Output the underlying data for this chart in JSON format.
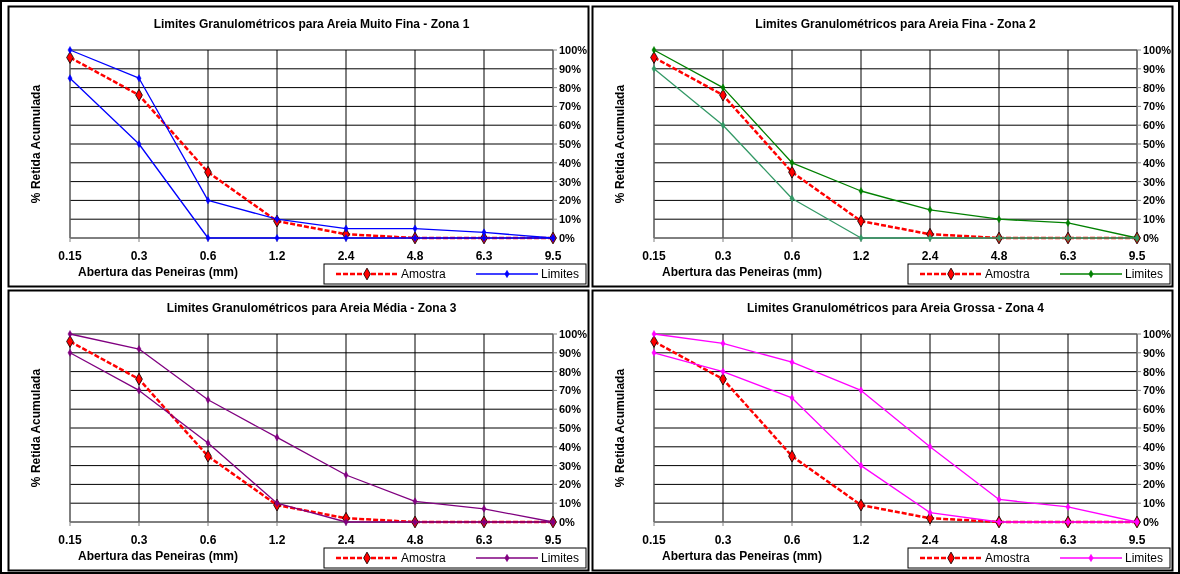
{
  "chart_data": [
    {
      "type": "line",
      "title": "Limites Granulométricos para Areia Muito Fina - Zona 1",
      "xlabel": "Abertura das Peneiras (mm)",
      "ylabel": "% Retida Acumulada",
      "categories": [
        "0.15",
        "0.3",
        "0.6",
        "1.2",
        "2.4",
        "4.8",
        "6.3",
        "9.5"
      ],
      "ylim": [
        0,
        100
      ],
      "yticks": [
        {
          "value": 0,
          "label": "0%"
        },
        {
          "value": 10,
          "label": "10%"
        },
        {
          "value": 20,
          "label": "20%"
        },
        {
          "value": 30,
          "label": "30%"
        },
        {
          "value": 40,
          "label": "40%"
        },
        {
          "value": 50,
          "label": "50%"
        },
        {
          "value": 60,
          "label": "60%"
        },
        {
          "value": 70,
          "label": "70%"
        },
        {
          "value": 80,
          "label": "80%"
        },
        {
          "value": 90,
          "label": "90%"
        },
        {
          "value": 100,
          "label": "100%"
        }
      ],
      "grid": true,
      "legend": "bottom right",
      "marker": "diamond",
      "series": [
        {
          "name": "Amostra",
          "color": "#ff0000",
          "line_style": "dashed",
          "values": [
            96,
            76,
            35,
            9,
            2,
            0,
            0,
            0
          ]
        },
        {
          "name": "Limites",
          "color": "#0000ff",
          "values": [
            100,
            85,
            20,
            10,
            5,
            5,
            3,
            0
          ]
        },
        {
          "color": "#0000ff",
          "values": [
            85,
            50,
            0,
            0,
            0,
            0,
            0,
            0
          ]
        }
      ]
    },
    {
      "type": "line",
      "title": "Limites Granulométricos para Areia Fina - Zona 2",
      "xlabel": "Abertura das Peneiras (mm)",
      "ylabel": "% Retida Acumulada",
      "categories": [
        "0.15",
        "0.3",
        "0.6",
        "1.2",
        "2.4",
        "4.8",
        "6.3",
        "9.5"
      ],
      "ylim": [
        0,
        100
      ],
      "yticks": [
        {
          "value": 0,
          "label": "0%"
        },
        {
          "value": 10,
          "label": "10%"
        },
        {
          "value": 20,
          "label": "20%"
        },
        {
          "value": 30,
          "label": "30%"
        },
        {
          "value": 40,
          "label": "40%"
        },
        {
          "value": 50,
          "label": "50%"
        },
        {
          "value": 60,
          "label": "60%"
        },
        {
          "value": 70,
          "label": "70%"
        },
        {
          "value": 80,
          "label": "80%"
        },
        {
          "value": 90,
          "label": "90%"
        },
        {
          "value": 100,
          "label": "100%"
        }
      ],
      "grid": true,
      "legend": "bottom right",
      "marker": "diamond",
      "series": [
        {
          "name": "Amostra",
          "color": "#ff0000",
          "line_style": "dashed",
          "values": [
            96,
            76,
            35,
            9,
            2,
            0,
            0,
            0
          ]
        },
        {
          "name": "Limites",
          "color": "#008000",
          "values": [
            100,
            80,
            40,
            25,
            15,
            10,
            8,
            0
          ]
        },
        {
          "color": "#339966",
          "values": [
            90,
            60,
            21,
            0,
            0,
            0,
            0,
            0
          ]
        }
      ]
    },
    {
      "type": "line",
      "title": "Limites Granulométricos para Areia Média - Zona 3",
      "xlabel": "Abertura das Peneiras (mm)",
      "ylabel": "% Retida Acumulada",
      "categories": [
        "0.15",
        "0.3",
        "0.6",
        "1.2",
        "2.4",
        "4.8",
        "6.3",
        "9.5"
      ],
      "ylim": [
        0,
        100
      ],
      "yticks": [
        {
          "value": 0,
          "label": "0%"
        },
        {
          "value": 10,
          "label": "10%"
        },
        {
          "value": 20,
          "label": "20%"
        },
        {
          "value": 30,
          "label": "30%"
        },
        {
          "value": 40,
          "label": "40%"
        },
        {
          "value": 50,
          "label": "50%"
        },
        {
          "value": 60,
          "label": "60%"
        },
        {
          "value": 70,
          "label": "70%"
        },
        {
          "value": 80,
          "label": "80%"
        },
        {
          "value": 90,
          "label": "90%"
        },
        {
          "value": 100,
          "label": "100%"
        }
      ],
      "grid": true,
      "legend": "bottom right",
      "marker": "diamond",
      "series": [
        {
          "name": "Amostra",
          "color": "#ff0000",
          "line_style": "dashed",
          "values": [
            96,
            76,
            35,
            9,
            2,
            0,
            0,
            0
          ]
        },
        {
          "name": "Limites",
          "color": "#800080",
          "values": [
            100,
            92,
            65,
            45,
            25,
            11,
            7,
            0
          ]
        },
        {
          "color": "#800080",
          "values": [
            90,
            70,
            42,
            10,
            0,
            0,
            0,
            0
          ]
        }
      ]
    },
    {
      "type": "line",
      "title": "Limites Granulométricos para Areia Grossa - Zona 4",
      "xlabel": "Abertura das Peneiras (mm)",
      "ylabel": "% Retida Acumulada",
      "categories": [
        "0.15",
        "0.3",
        "0.6",
        "1.2",
        "2.4",
        "4.8",
        "6.3",
        "9.5"
      ],
      "ylim": [
        0,
        100
      ],
      "yticks": [
        {
          "value": 0,
          "label": "0%"
        },
        {
          "value": 10,
          "label": "10%"
        },
        {
          "value": 20,
          "label": "20%"
        },
        {
          "value": 30,
          "label": "30%"
        },
        {
          "value": 40,
          "label": "40%"
        },
        {
          "value": 50,
          "label": "50%"
        },
        {
          "value": 60,
          "label": "60%"
        },
        {
          "value": 70,
          "label": "70%"
        },
        {
          "value": 80,
          "label": "80%"
        },
        {
          "value": 90,
          "label": "90%"
        },
        {
          "value": 100,
          "label": "100%"
        }
      ],
      "grid": true,
      "legend": "bottom right",
      "marker": "diamond",
      "series": [
        {
          "name": "Amostra",
          "color": "#ff0000",
          "line_style": "dashed",
          "values": [
            96,
            76,
            35,
            9,
            2,
            0,
            0,
            0
          ]
        },
        {
          "name": "Limites",
          "color": "#ff00ff",
          "values": [
            100,
            95,
            85,
            70,
            40,
            12,
            8,
            0
          ]
        },
        {
          "color": "#ff00ff",
          "values": [
            90,
            80,
            66,
            30,
            5,
            0,
            0,
            0
          ]
        }
      ]
    }
  ]
}
